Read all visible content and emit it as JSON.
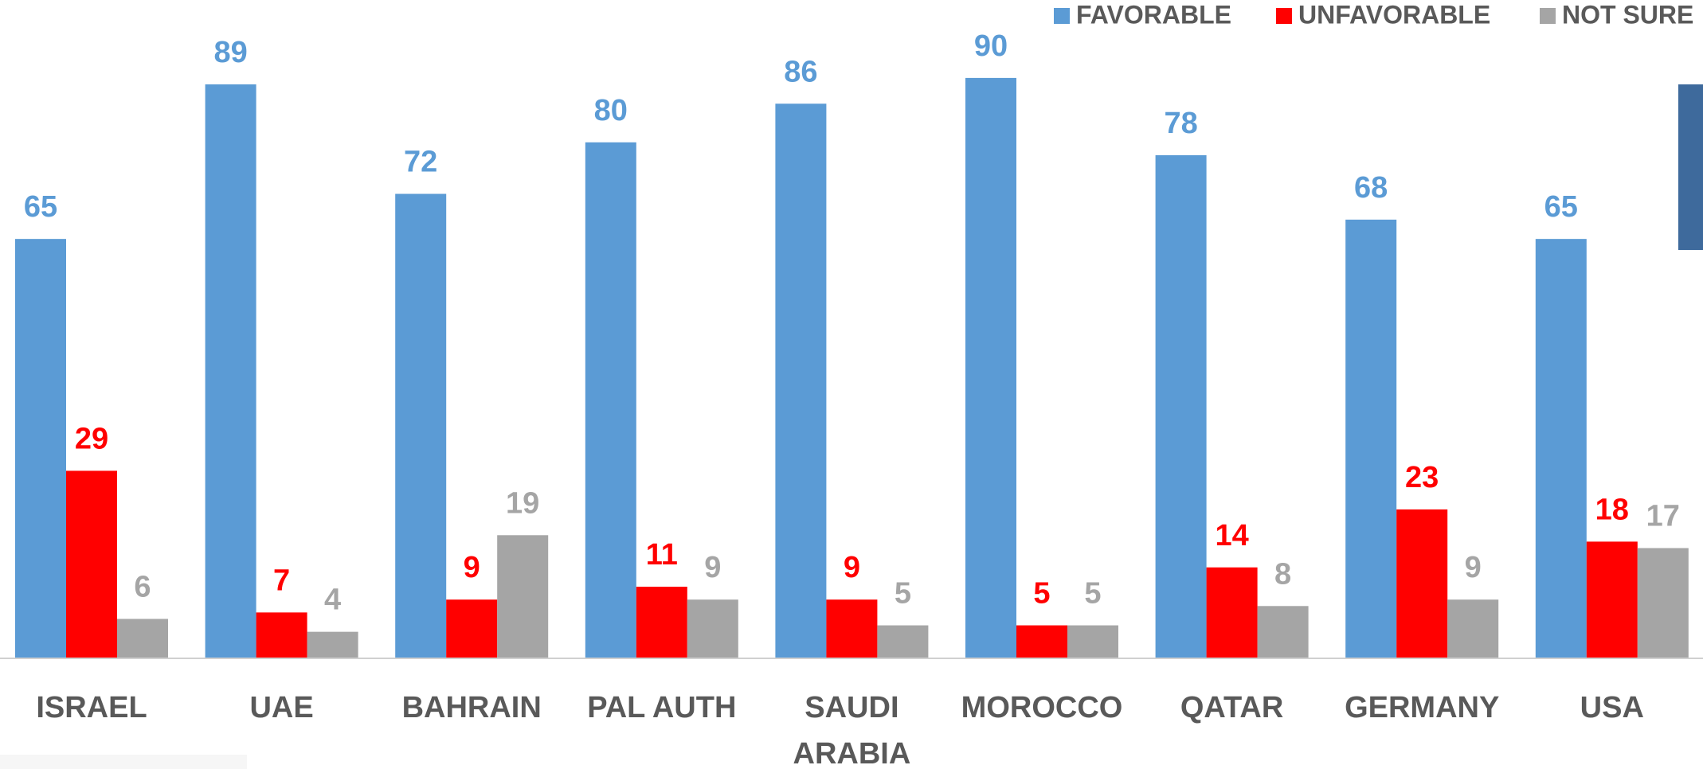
{
  "chart_data": {
    "type": "bar",
    "categories": [
      "ISRAEL",
      "UAE",
      "BAHRAIN",
      "PAL AUTH",
      "SAUDI ARABIA",
      "MOROCCO",
      "QATAR",
      "GERMANY",
      "USA"
    ],
    "series": [
      {
        "name": "FAVORABLE",
        "color": "#5b9bd5",
        "values": [
          65,
          89,
          72,
          80,
          86,
          90,
          78,
          68,
          65
        ]
      },
      {
        "name": "UNFAVORABLE",
        "color": "#ff0000",
        "values": [
          29,
          7,
          9,
          11,
          9,
          5,
          14,
          23,
          18
        ]
      },
      {
        "name": "NOT SURE",
        "color": "#a5a5a5",
        "values": [
          6,
          4,
          19,
          9,
          5,
          5,
          8,
          9,
          17
        ]
      }
    ],
    "ylim": [
      0,
      100
    ],
    "legend": "top-right"
  }
}
